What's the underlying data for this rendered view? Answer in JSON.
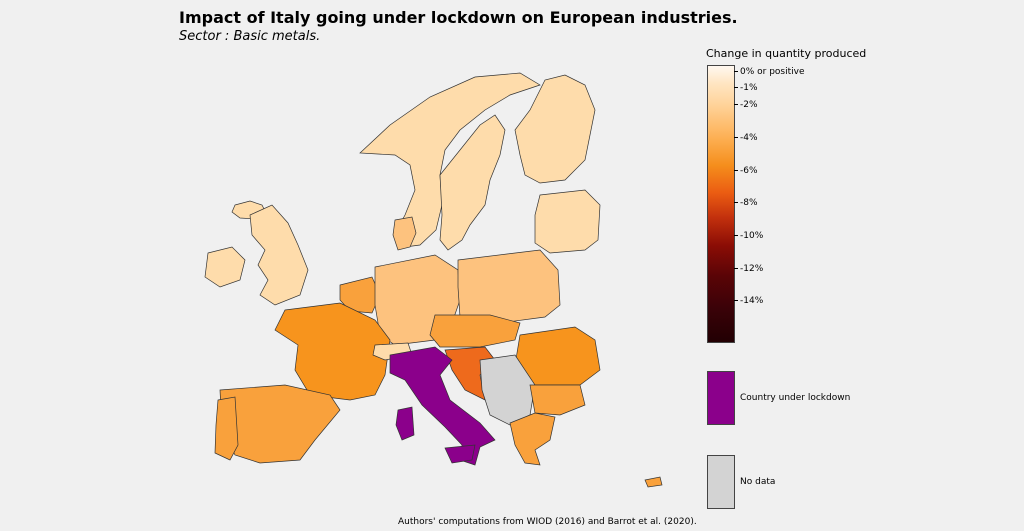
{
  "title": "Impact of Italy going under lockdown on European industries.",
  "subtitle": "Sector : Basic metals.",
  "colors": {
    "background": "#f0f0f0",
    "very_light": "#fedcab",
    "light": "#fdc27e",
    "medium": "#f9a13c",
    "strong": "#f7941d",
    "croatia": "#ee6a1c",
    "lockdown": "#8b008b",
    "no_data": "#d3d3d3"
  },
  "legend": {
    "title": "Change in quantity produced",
    "ticks": [
      "0% or positive",
      "-1%",
      "-2%",
      "-4%",
      "-6%",
      "-8%",
      "-10%",
      "-12%",
      "-14%"
    ],
    "lockdown_label": "Country under lockdown",
    "no_data_label": "No data"
  },
  "footer": "Authors' computations from WIOD (2016) and Barrot et al. (2020)."
}
